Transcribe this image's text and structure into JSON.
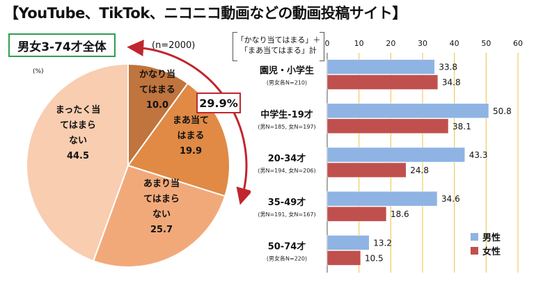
{
  "title": "【YouTube、TikTok、ニコニコ動画などの動画投稿サイト】",
  "scope_label": "男女3-74才全体",
  "sample_note": "(n=2000)",
  "pct_unit": "(%)",
  "callout_value": "29.9%",
  "legend_note": {
    "line1": "「かなり当てはまる」＋",
    "line2": "「まあ当てはまる」計"
  },
  "colors": {
    "male": "#8fb4e3",
    "female": "#c0504d",
    "arrow": "#c0262d",
    "gridline": "#f0c040",
    "callout_border": "#c0262d",
    "scope_border": "#2e9e4f"
  },
  "chart_data": [
    {
      "type": "pie",
      "slices": [
        {
          "label": [
            "かなり当",
            "てはまる"
          ],
          "value": 10.0,
          "value_text": "10.0",
          "color": "#c0743e"
        },
        {
          "label": [
            "まあ当て",
            "はまる"
          ],
          "value": 19.9,
          "value_text": "19.9",
          "color": "#e08a45"
        },
        {
          "label": [
            "あまり当",
            "てはまら",
            "ない"
          ],
          "value": 25.7,
          "value_text": "25.7",
          "color": "#f2a97a"
        },
        {
          "label": [
            "まったく当",
            "てはまら",
            "ない"
          ],
          "value": 44.5,
          "value_text": "44.5",
          "color": "#f8cdb0"
        }
      ]
    },
    {
      "type": "bar",
      "orientation": "horizontal",
      "xlim": [
        0,
        60
      ],
      "xticks": [
        0,
        10,
        20,
        30,
        40,
        50,
        60
      ],
      "categories": [
        {
          "name": "園児・小学生",
          "note": "(男女各N=210)"
        },
        {
          "name": "中学生-19才",
          "note": "(男N=185, 女N=197)"
        },
        {
          "name": "20-34才",
          "note": "(男N=194, 女N=206)"
        },
        {
          "name": "35-49才",
          "note": "(男N=191, 女N=167)"
        },
        {
          "name": "50-74才",
          "note": "(男女各N=220)"
        }
      ],
      "series": [
        {
          "name": "男性",
          "values": [
            33.8,
            50.8,
            43.3,
            34.6,
            13.2
          ]
        },
        {
          "name": "女性",
          "values": [
            34.8,
            38.1,
            24.8,
            18.6,
            10.5
          ]
        }
      ],
      "grid": true,
      "legend_position": "bottom-right"
    }
  ]
}
